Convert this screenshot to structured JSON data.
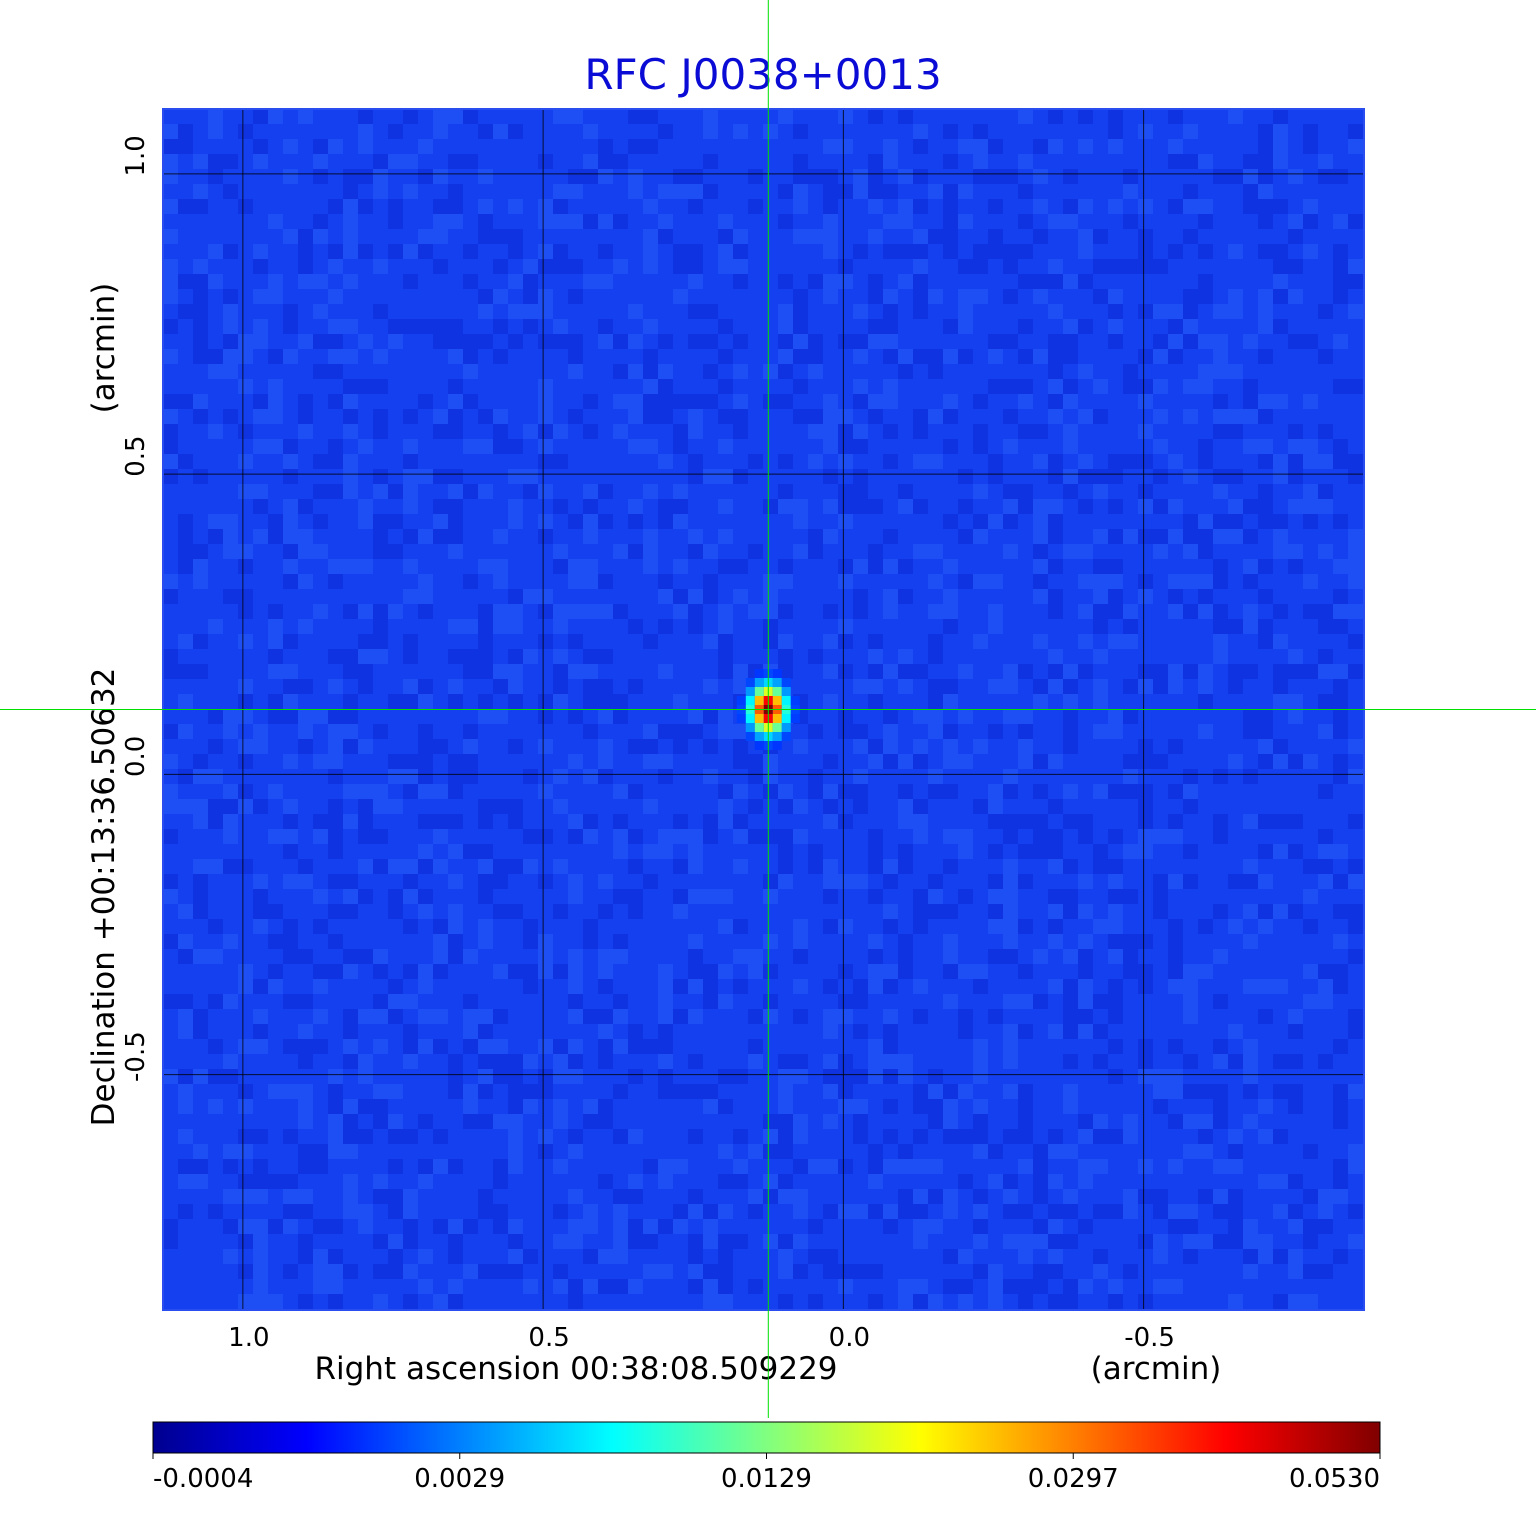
{
  "chart_data": {
    "type": "heatmap",
    "title": "RFC J0038+0013",
    "x_axis": {
      "label": "Right ascension  00:38:08.509229",
      "unit_label": "(arcmin)",
      "ticks": [
        1.0,
        0.5,
        0.0,
        -0.5
      ],
      "tick_labels": [
        "1.0",
        "0.5",
        "0.0",
        "-0.5"
      ],
      "range": [
        1.133,
        -0.867
      ],
      "reversed": true
    },
    "y_axis": {
      "label": "Declination  +00:13:36.50632",
      "unit_label": "(arcmin)",
      "ticks": [
        1.0,
        0.5,
        0.0,
        -0.5
      ],
      "tick_labels": [
        "1.0",
        "0.5",
        "0.0",
        "-0.5"
      ],
      "range": [
        -0.892,
        1.108
      ]
    },
    "grid": true,
    "crosshair": {
      "x": 0.125,
      "y": 0.108,
      "color": "#00e000"
    },
    "source": {
      "x": 0.125,
      "y": 0.108,
      "peak": 0.053
    },
    "colormap": "jet",
    "colorbar": {
      "orientation": "horizontal",
      "tick_labels": [
        "-0.0004",
        "0.0029",
        "0.0129",
        "0.0297",
        "0.0530"
      ],
      "tick_values": [
        -0.0004,
        0.0029,
        0.0129,
        0.0297,
        0.053
      ]
    },
    "colors": {
      "title": "#0b0bd6",
      "background_map": "#1440f0",
      "grid": "#000000",
      "crosshair": "#00e000"
    }
  }
}
